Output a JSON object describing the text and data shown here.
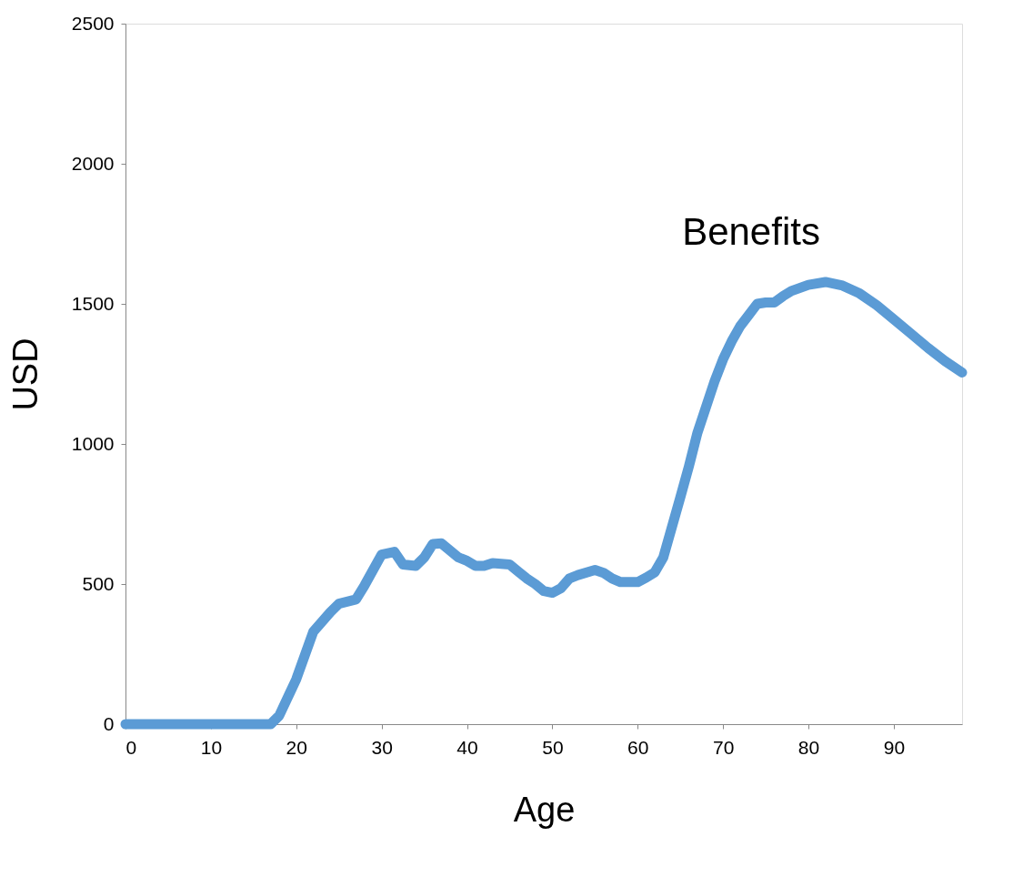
{
  "chart_data": {
    "type": "line",
    "xlabel": "Age",
    "ylabel": "USD",
    "xlim": [
      0,
      98
    ],
    "xticks": [
      0,
      10,
      20,
      30,
      40,
      50,
      60,
      70,
      80,
      90
    ],
    "ylim": [
      0,
      2500
    ],
    "yticks": [
      0,
      500,
      1000,
      1500,
      2000,
      2500
    ],
    "grid": false,
    "legend": false,
    "line_style": "solid",
    "annotations": [
      "Benefits"
    ],
    "series": [
      {
        "color": "#5b9bd5",
        "x": [
          0,
          17,
          18,
          20,
          22,
          24,
          25,
          27,
          28,
          30,
          31.5,
          32.5,
          34,
          35,
          36,
          37,
          38,
          39,
          40,
          41,
          42,
          43,
          45,
          46,
          47,
          48,
          49,
          50,
          51,
          52,
          53,
          55,
          56,
          57,
          58,
          60,
          61,
          62,
          63,
          65,
          66,
          67,
          69,
          70,
          71,
          72,
          73,
          74,
          75,
          76,
          77,
          78,
          80,
          82,
          84,
          86,
          88,
          90,
          92,
          94,
          96,
          98
        ],
        "values": [
          0,
          0,
          30,
          160,
          330,
          400,
          430,
          445,
          495,
          605,
          615,
          570,
          565,
          595,
          643,
          645,
          620,
          595,
          583,
          565,
          565,
          575,
          570,
          545,
          520,
          500,
          475,
          469,
          485,
          520,
          532,
          550,
          540,
          520,
          507,
          507,
          523,
          542,
          595,
          810,
          920,
          1040,
          1223,
          1302,
          1366,
          1420,
          1460,
          1500,
          1505,
          1505,
          1527,
          1546,
          1568,
          1578,
          1565,
          1537,
          1495,
          1445,
          1394,
          1343,
          1296,
          1255
        ]
      }
    ]
  }
}
